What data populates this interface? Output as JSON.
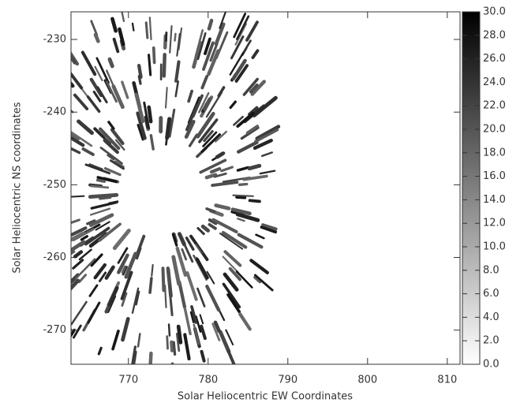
{
  "chart_data": {
    "type": "image",
    "xlabel": "Solar Heliocentric EW Coordinates",
    "ylabel": "Solar Heliocentric NS coordinates",
    "xlim": [
      762.8,
      811.6
    ],
    "xticks": [
      770,
      780,
      790,
      800,
      810
    ],
    "ylim": [
      -274.7,
      -226.2
    ],
    "yticks": [
      -230,
      -240,
      -250,
      -260,
      -270
    ],
    "colorbar": {
      "lim": [
        0,
        30
      ],
      "ticks": [
        {
          "value": 0,
          "label": "0.0"
        },
        {
          "value": 2,
          "label": "2.0"
        },
        {
          "value": 4,
          "label": "4.0"
        },
        {
          "value": 6,
          "label": "6.0"
        },
        {
          "value": 8,
          "label": "8.0"
        },
        {
          "value": 10,
          "label": "10.0"
        },
        {
          "value": 12,
          "label": "12.0"
        },
        {
          "value": 14,
          "label": "14.0"
        },
        {
          "value": 16,
          "label": "16.0"
        },
        {
          "value": 18,
          "label": "18.0"
        },
        {
          "value": 20,
          "label": "20.0"
        },
        {
          "value": 22,
          "label": "22.0"
        },
        {
          "value": 24,
          "label": "24.0"
        },
        {
          "value": 26,
          "label": "26.0"
        },
        {
          "value": 28,
          "label": "28.0"
        },
        {
          "value": 30,
          "label": "30.0"
        }
      ]
    }
  }
}
